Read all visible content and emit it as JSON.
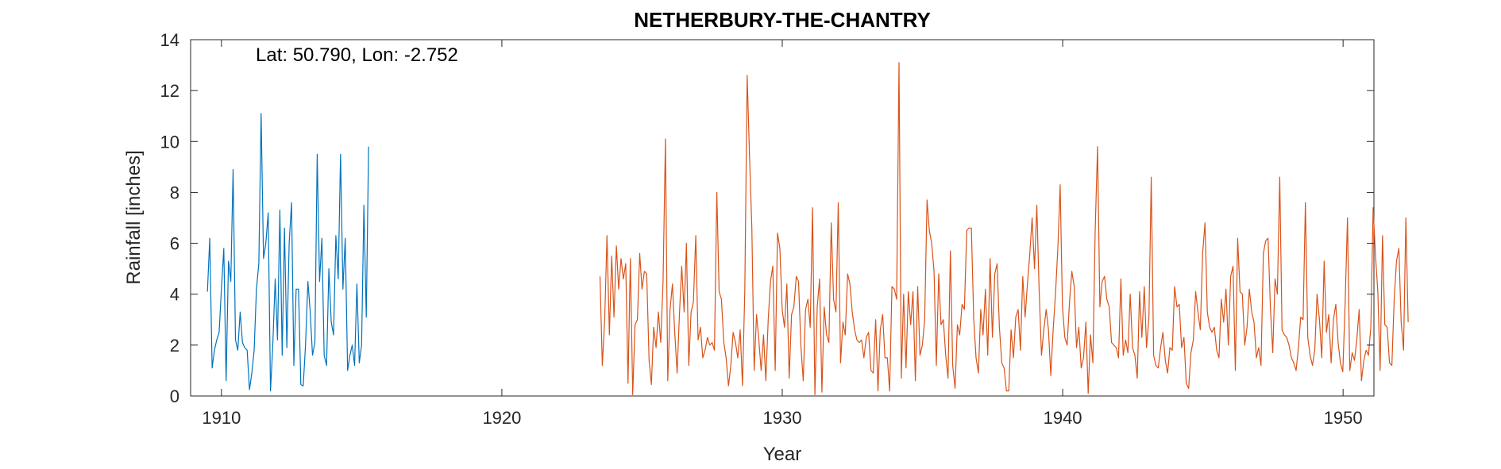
{
  "chart_data": {
    "type": "line",
    "title": "NETHERBURY-THE-CHANTRY",
    "annotation": "Lat: 50.790, Lon: -2.752",
    "xlabel": "Year",
    "ylabel": "Rainfall [inches]",
    "xlim": [
      1908.9,
      1951.1
    ],
    "ylim": [
      0,
      14
    ],
    "xticks": [
      1910,
      1920,
      1930,
      1940,
      1950
    ],
    "yticks": [
      0,
      2,
      4,
      6,
      8,
      10,
      12,
      14
    ],
    "grid": false,
    "series": [
      {
        "color": "#0072BD",
        "start_year": 1909.5,
        "step": 0.0833,
        "values": [
          4.1,
          6.2,
          1.1,
          1.8,
          2.2,
          2.5,
          4.2,
          5.8,
          0.6,
          5.3,
          4.5,
          8.9,
          2.2,
          1.8,
          3.3,
          2.1,
          1.9,
          1.8,
          0.25,
          0.9,
          1.8,
          4.2,
          5.2,
          11.1,
          5.4,
          6.0,
          7.2,
          0.2,
          2.0,
          4.6,
          2.2,
          7.3,
          1.6,
          6.6,
          1.9,
          6.0,
          7.6,
          1.2,
          4.2,
          4.2,
          0.45,
          0.4,
          2.0,
          4.5,
          3.3,
          1.6,
          2.1,
          9.5,
          4.5,
          6.2,
          1.6,
          1.2,
          5.0,
          2.9,
          2.4,
          6.3,
          4.6,
          9.5,
          4.2,
          6.2,
          1.0,
          1.6,
          2.0,
          1.2,
          4.4,
          1.3,
          2.0,
          7.5,
          3.1,
          9.8
        ]
      },
      {
        "color": "#D95319",
        "start_year": 1923.5,
        "step": 0.0833,
        "values": [
          4.7,
          1.2,
          3.0,
          6.3,
          2.4,
          5.5,
          3.1,
          5.9,
          4.2,
          5.4,
          4.6,
          5.2,
          0.5,
          5.4,
          0.05,
          2.8,
          3.0,
          5.6,
          4.2,
          4.9,
          4.8,
          1.4,
          0.45,
          2.7,
          1.9,
          3.3,
          2.1,
          4.5,
          10.1,
          0.6,
          3.4,
          4.4,
          2.5,
          0.9,
          3.2,
          5.1,
          3.3,
          6.0,
          1.2,
          3.3,
          3.7,
          6.3,
          2.2,
          2.7,
          1.5,
          1.8,
          2.3,
          2.0,
          2.1,
          1.8,
          8.0,
          4.1,
          3.8,
          2.1,
          1.5,
          0.4,
          1.2,
          2.5,
          2.1,
          1.5,
          2.6,
          0.4,
          4.1,
          12.6,
          9.5,
          6.6,
          1.0,
          3.2,
          2.2,
          1.0,
          2.4,
          0.6,
          3.0,
          4.5,
          5.1,
          1.0,
          6.4,
          5.8,
          3.4,
          2.7,
          4.4,
          0.7,
          3.2,
          3.5,
          4.7,
          4.5,
          2.0,
          0.6,
          3.4,
          3.8,
          2.7,
          7.4,
          0.05,
          3.5,
          4.6,
          0.15,
          3.5,
          2.4,
          2.1,
          6.8,
          3.8,
          3.3,
          7.6,
          1.3,
          2.9,
          2.4,
          4.8,
          4.4,
          3.3,
          2.6,
          2.2,
          2.1,
          2.2,
          1.5,
          2.3,
          2.5,
          1.0,
          0.9,
          3.0,
          0.2,
          2.6,
          3.2,
          1.5,
          1.5,
          0.2,
          4.3,
          4.2,
          3.8,
          13.1,
          0.7,
          4.0,
          1.1,
          4.1,
          2.8,
          4.1,
          0.6,
          4.3,
          1.6,
          2.0,
          3.0,
          7.7,
          6.5,
          6.0,
          4.9,
          1.2,
          4.8,
          2.8,
          3.0,
          1.6,
          0.7,
          5.7,
          1.2,
          0.3,
          2.8,
          2.4,
          3.6,
          3.4,
          6.5,
          6.6,
          6.6,
          3.0,
          1.5,
          0.9,
          3.4,
          2.4,
          4.2,
          1.6,
          5.4,
          2.3,
          4.8,
          5.2,
          2.7,
          1.3,
          1.1,
          0.2,
          0.2,
          2.6,
          1.5,
          3.1,
          3.4,
          1.8,
          4.7,
          3.1,
          4.4,
          5.6,
          7.0,
          5.0,
          7.5,
          4.2,
          1.6,
          2.6,
          3.4,
          2.6,
          0.8,
          2.6,
          4.0,
          5.8,
          8.3,
          3.5,
          2.3,
          2.0,
          3.7,
          4.9,
          4.3,
          1.9,
          2.7,
          1.1,
          1.5,
          2.9,
          0.1,
          2.4,
          1.3,
          6.5,
          9.8,
          3.5,
          4.5,
          4.7,
          3.8,
          3.5,
          2.1,
          2.0,
          1.9,
          1.5,
          4.6,
          1.6,
          2.2,
          1.7,
          4.0,
          1.9,
          1.6,
          0.7,
          4.1,
          2.3,
          4.3,
          1.9,
          3.1,
          8.6,
          1.6,
          1.2,
          1.1,
          1.9,
          2.5,
          1.4,
          0.9,
          1.9,
          1.8,
          4.3,
          3.5,
          3.6,
          1.9,
          2.3,
          0.5,
          0.3,
          1.7,
          2.2,
          4.1,
          3.3,
          2.6,
          5.6,
          6.8,
          3.3,
          2.7,
          2.5,
          2.7,
          1.8,
          1.5,
          3.8,
          2.9,
          4.2,
          2.0,
          4.7,
          5.1,
          1.0,
          6.2,
          4.1,
          4.0,
          2.0,
          2.7,
          4.2,
          3.3,
          2.9,
          1.5,
          1.9,
          1.2,
          5.6,
          6.1,
          6.2,
          3.5,
          1.7,
          4.6,
          4.0,
          8.6,
          2.6,
          2.4,
          2.3,
          2.0,
          1.5,
          1.3,
          1.0,
          1.9,
          3.1,
          3.0,
          7.6,
          2.3,
          1.6,
          1.2,
          1.8,
          4.0,
          3.0,
          1.5,
          5.3,
          2.5,
          3.2,
          1.3,
          3.0,
          3.6,
          2.1,
          1.3,
          0.95,
          3.6,
          7.0,
          1.0,
          1.7,
          1.4,
          2.2,
          3.4,
          0.6,
          1.4,
          1.8,
          1.6,
          2.7,
          7.4,
          5.5,
          4.1,
          1.0,
          6.3,
          2.8,
          2.7,
          1.3,
          1.2,
          3.8,
          5.3,
          5.8,
          2.9,
          1.8,
          7.0,
          2.9
        ]
      }
    ]
  }
}
